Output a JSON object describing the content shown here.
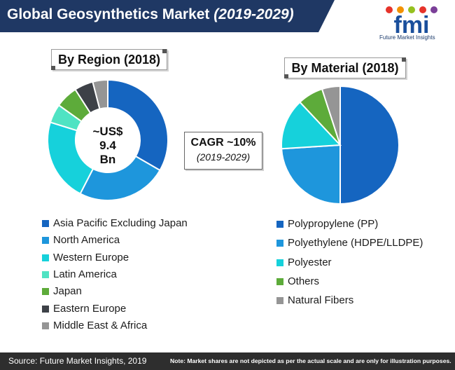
{
  "header": {
    "title_main": "Global Geosynthetics Market",
    "title_years": "(2019-2029)",
    "background_color": "#1f3864"
  },
  "logo": {
    "letters": "fmi",
    "tagline": "Future Market Insights",
    "dot_colors": [
      "#e6332a",
      "#f39200",
      "#95c11f",
      "#e6332a",
      "#7b3f98"
    ],
    "color": "#1a4f9c"
  },
  "cagr": {
    "label": "CAGR ~10%",
    "period": "(2019-2029)"
  },
  "chart_data": [
    {
      "type": "pie",
      "donut": true,
      "title": "By Region (2018)",
      "center_label": [
        "~US$",
        "9.4",
        "Bn"
      ],
      "categories": [
        "Asia Pacific Excluding Japan",
        "North America",
        "Western Europe",
        "Latin America",
        "Japan",
        "Eastern Europe",
        "Middle East & Africa"
      ],
      "values": [
        33,
        24,
        22,
        5,
        6,
        5,
        4
      ],
      "colors": [
        "#1565c0",
        "#1e96dc",
        "#16d1db",
        "#4fe3c3",
        "#5dab3a",
        "#3d4147",
        "#959595"
      ],
      "legend_position": "bottom"
    },
    {
      "type": "pie",
      "donut": false,
      "title": "By Material (2018)",
      "categories": [
        "Polypropylene (PP)",
        "Polyethylene (HDPE/LLDPE)",
        "Polyester",
        "Others",
        "Natural Fibers"
      ],
      "values": [
        50,
        24,
        14,
        7,
        5
      ],
      "colors": [
        "#1565c0",
        "#1e96dc",
        "#16d1db",
        "#5dab3a",
        "#959595"
      ],
      "legend_position": "bottom"
    }
  ],
  "footer": {
    "source": "Source: Future Market Insights, 2019",
    "note": "Note: Market shares are not depicted as per the actual scale and are only for illustration purposes."
  }
}
